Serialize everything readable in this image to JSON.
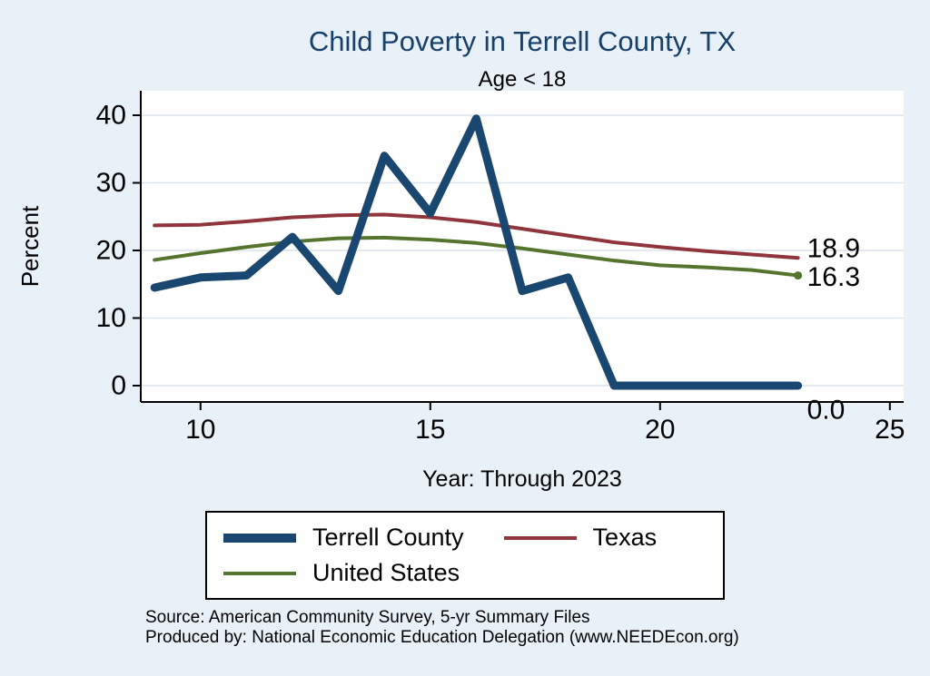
{
  "header": {
    "title": "Child Poverty in Terrell County, TX",
    "subtitle": "Age < 18"
  },
  "colors": {
    "background": "#e8f1f8",
    "plot_background": "#ffffff",
    "grid": "#dbe4ec",
    "axis": "#000000",
    "title": "#17406a"
  },
  "chart_data": {
    "type": "line",
    "title": "Child Poverty in Terrell County, TX",
    "subtitle": "Age < 18",
    "xlabel": "Year: Through 2023",
    "ylabel": "Percent",
    "xlim": [
      8.7,
      25.3
    ],
    "ylim": [
      0,
      40
    ],
    "xticks": [
      10,
      15,
      20,
      25
    ],
    "yticks": [
      0,
      10,
      20,
      30,
      40
    ],
    "grid": true,
    "legend_position": "bottom",
    "x": [
      9,
      10,
      11,
      12,
      13,
      14,
      15,
      16,
      17,
      18,
      19,
      20,
      21,
      22,
      23
    ],
    "series": [
      {
        "name": "Terrell County",
        "color": "#1a476f",
        "width": 9,
        "values": [
          14.5,
          16.0,
          16.3,
          22.0,
          14.0,
          34.0,
          25.5,
          39.5,
          14.0,
          16.0,
          0,
          0,
          0,
          0,
          0
        ],
        "end_label": "0.0",
        "end_label_dy": 27
      },
      {
        "name": "Texas",
        "color": "#90353b",
        "width": 4,
        "values": [
          23.7,
          23.8,
          24.3,
          24.9,
          25.2,
          25.3,
          24.9,
          24.2,
          23.2,
          22.2,
          21.2,
          20.5,
          19.9,
          19.4,
          18.9
        ],
        "end_label": "18.9",
        "end_label_dy": -10
      },
      {
        "name": "United States",
        "color": "#55752f",
        "width": 4,
        "values": [
          18.6,
          19.6,
          20.5,
          21.3,
          21.8,
          21.9,
          21.6,
          21.1,
          20.3,
          19.4,
          18.5,
          17.8,
          17.5,
          17.1,
          16.3
        ],
        "end_label": "16.3",
        "end_label_dy": 2,
        "end_marker": true
      }
    ]
  },
  "legend": {
    "items": [
      {
        "label": "Terrell County",
        "color": "#1a476f",
        "height": 10
      },
      {
        "label": "Texas",
        "color": "#90353b",
        "height": 4
      },
      {
        "label": "United States",
        "color": "#55752f",
        "height": 4
      }
    ]
  },
  "footer": {
    "source": "Source: American Community Survey, 5-yr Summary Files",
    "produced": "Produced by: National Economic Education Delegation (www.NEEDEcon.org)"
  }
}
